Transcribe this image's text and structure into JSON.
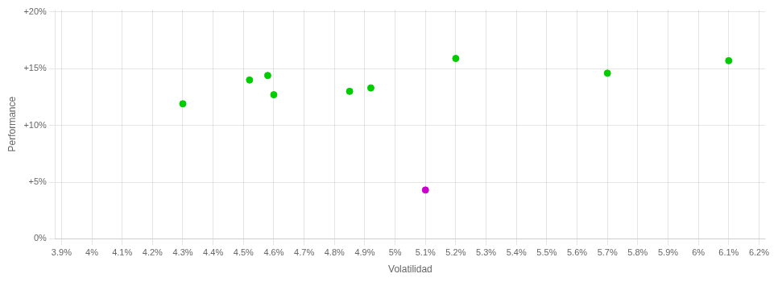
{
  "chart_data": {
    "type": "scatter",
    "x_label": "Volatilidad",
    "y_label": "Performance",
    "series": [
      {
        "color": "#00cc00",
        "marker": "circle",
        "values": [
          [
            0.043,
            0.119
          ],
          [
            0.0452,
            0.14
          ],
          [
            0.0458,
            0.144
          ],
          [
            0.046,
            0.127
          ],
          [
            0.0485,
            0.13
          ],
          [
            0.0492,
            0.133
          ],
          [
            0.052,
            0.159
          ],
          [
            0.057,
            0.146
          ],
          [
            0.061,
            0.157
          ]
        ]
      },
      {
        "color": "#cc00cc",
        "marker": "circle",
        "values": [
          [
            0.051,
            0.043
          ]
        ]
      }
    ],
    "xlim": [
      0.0388,
      0.0622
    ],
    "ylim": [
      0.0,
      0.202
    ],
    "xticks": [
      {
        "value": 0.039,
        "label": "3.9%"
      },
      {
        "value": 0.04,
        "label": "4%"
      },
      {
        "value": 0.041,
        "label": "4.1%"
      },
      {
        "value": 0.042,
        "label": "4.2%"
      },
      {
        "value": 0.043,
        "label": "4.3%"
      },
      {
        "value": 0.044,
        "label": "4.4%"
      },
      {
        "value": 0.045,
        "label": "4.5%"
      },
      {
        "value": 0.046,
        "label": "4.6%"
      },
      {
        "value": 0.047,
        "label": "4.7%"
      },
      {
        "value": 0.048,
        "label": "4.8%"
      },
      {
        "value": 0.049,
        "label": "4.9%"
      },
      {
        "value": 0.05,
        "label": "5%"
      },
      {
        "value": 0.051,
        "label": "5.1%"
      },
      {
        "value": 0.052,
        "label": "5.2%"
      },
      {
        "value": 0.053,
        "label": "5.3%"
      },
      {
        "value": 0.054,
        "label": "5.4%"
      },
      {
        "value": 0.055,
        "label": "5.5%"
      },
      {
        "value": 0.056,
        "label": "5.6%"
      },
      {
        "value": 0.057,
        "label": "5.7%"
      },
      {
        "value": 0.058,
        "label": "5.8%"
      },
      {
        "value": 0.059,
        "label": "5.9%"
      },
      {
        "value": 0.06,
        "label": "6%"
      },
      {
        "value": 0.061,
        "label": "6.1%"
      },
      {
        "value": 0.062,
        "label": "6.2%"
      }
    ],
    "yticks": [
      {
        "value": 0.0,
        "label": "0%"
      },
      {
        "value": 0.05,
        "label": "+5%"
      },
      {
        "value": 0.1,
        "label": "+10%"
      },
      {
        "value": 0.15,
        "label": "+15%"
      },
      {
        "value": 0.2,
        "label": "+20%"
      }
    ],
    "grid": true
  }
}
